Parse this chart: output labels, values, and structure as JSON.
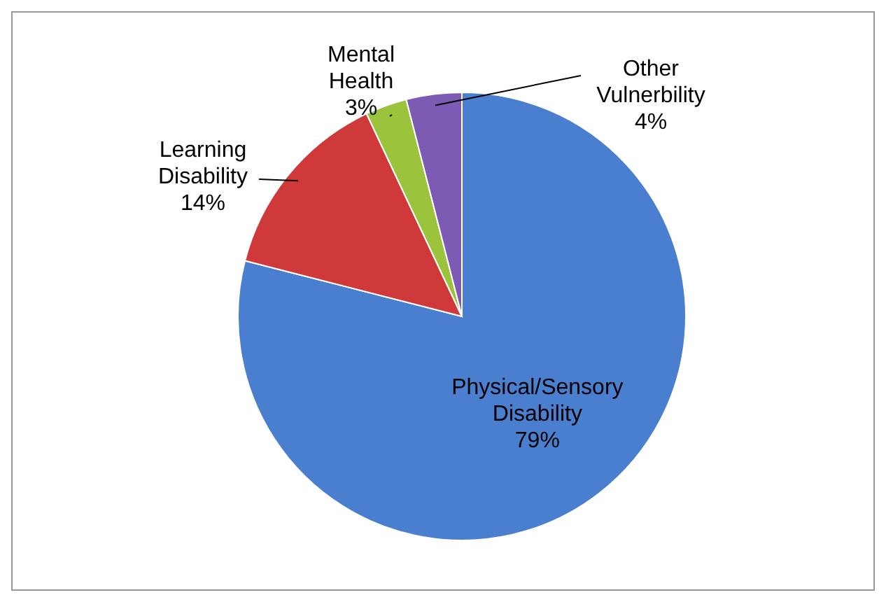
{
  "chart_data": {
    "type": "pie",
    "categories": [
      "Physical/Sensory Disability",
      "Learning Disability",
      "Mental Health",
      "Other Vulnerbility"
    ],
    "values": [
      79,
      14,
      3,
      4
    ],
    "colors": [
      "#4a7fd0",
      "#d0393a",
      "#9bc43c",
      "#7d5bb4"
    ],
    "value_labels": [
      "79%",
      "14%",
      "3%",
      "4%"
    ],
    "legend": false
  }
}
